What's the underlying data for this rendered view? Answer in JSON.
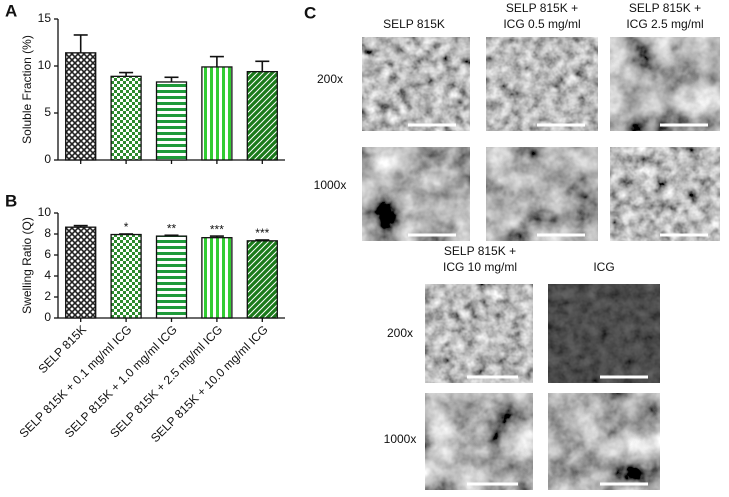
{
  "chart_data": [
    {
      "type": "bar",
      "panel_label": "A",
      "y_label": "Soluble  Fraction (%)",
      "categories": [
        null,
        null,
        null,
        null,
        null
      ],
      "values": [
        11.4,
        8.9,
        8.3,
        9.9,
        9.4
      ],
      "errors": [
        1.9,
        0.4,
        0.5,
        1.1,
        1.1
      ],
      "colors": [
        "#222222",
        "#2e8b2e",
        "#1f9a3a",
        "#33cc33",
        "#1a7a1a"
      ],
      "patterns": [
        "crosshatch",
        "checker",
        "hstripe",
        "vstripe",
        "diagonal"
      ],
      "ylim": [
        0,
        15
      ],
      "yticks": [
        0,
        5,
        10,
        15
      ]
    },
    {
      "type": "bar",
      "panel_label": "B",
      "y_label": "Swelling Ratio (Q)",
      "categories": [
        "SELP 815K",
        "SELP 815K + 0.1 mg/ml ICG",
        "SELP 815K + 1.0 mg/ml ICG",
        "SELP 815K + 2.5 mg/ml ICG",
        "SELP 815K + 10.0 mg/ml ICG"
      ],
      "values": [
        8.65,
        7.95,
        7.8,
        7.65,
        7.35
      ],
      "errors": [
        0.15,
        0.05,
        0.08,
        0.15,
        0.08
      ],
      "annotations": [
        null,
        "*",
        "**",
        "***",
        "***"
      ],
      "colors": [
        "#222222",
        "#2e8b2e",
        "#1f9a3a",
        "#33cc33",
        "#1a7a1a"
      ],
      "patterns": [
        "crosshatch",
        "checker",
        "hstripe",
        "vstripe",
        "diagonal"
      ],
      "ylim": [
        0,
        10
      ],
      "yticks": [
        0,
        2,
        4,
        6,
        8,
        10
      ]
    }
  ],
  "micrographs": {
    "panel_label": "C",
    "top_columns": [
      [
        "SELP 815K"
      ],
      [
        "SELP 815K +",
        "ICG 0.5 mg/ml"
      ],
      [
        "SELP 815K +",
        "ICG 2.5 mg/ml"
      ]
    ],
    "top_rows": [
      "200x",
      "1000x"
    ],
    "bottom_columns": [
      [
        "SELP 815K +",
        "ICG 10 mg/ml"
      ],
      [
        "ICG"
      ]
    ],
    "bottom_rows": [
      "200x",
      "1000x"
    ]
  }
}
